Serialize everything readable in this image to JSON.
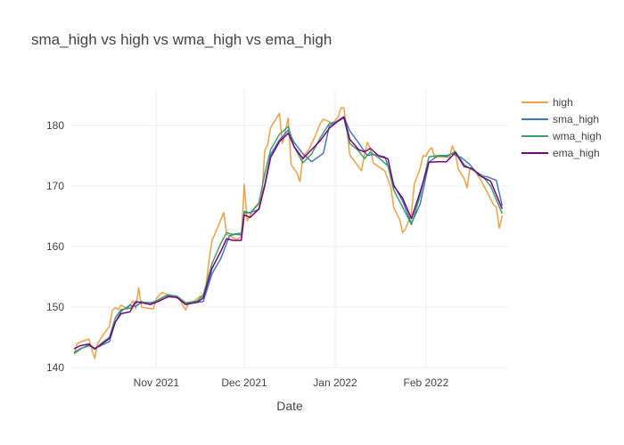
{
  "chart_data": {
    "type": "line",
    "title": "sma_high vs high vs wma_high vs ema_high",
    "xlabel": "Date",
    "ylabel": "",
    "xlim": [
      "2021-10-03",
      "2022-03-01"
    ],
    "ylim": [
      140,
      186
    ],
    "x_ticks": [
      {
        "value": "2021-11-01",
        "label": "Nov 2021"
      },
      {
        "value": "2021-12-01",
        "label": "Dec 2021"
      },
      {
        "value": "2022-01-01",
        "label": "Jan 2022"
      },
      {
        "value": "2022-02-01",
        "label": "Feb 2022"
      }
    ],
    "y_ticks": [
      140,
      150,
      160,
      170,
      180
    ],
    "grid": true,
    "legend_position": "top-right",
    "series": [
      {
        "name": "high",
        "color": "#f2a03f",
        "points": [
          [
            "2021-10-04",
            142.2
          ],
          [
            "2021-10-05",
            144.0
          ],
          [
            "2021-10-07",
            144.4
          ],
          [
            "2021-10-09",
            144.7
          ],
          [
            "2021-10-10",
            143.0
          ],
          [
            "2021-10-11",
            141.5
          ],
          [
            "2021-10-12",
            144.0
          ],
          [
            "2021-10-14",
            145.5
          ],
          [
            "2021-10-16",
            146.8
          ],
          [
            "2021-10-17",
            149.4
          ],
          [
            "2021-10-18",
            149.9
          ],
          [
            "2021-10-19",
            149.6
          ],
          [
            "2021-10-20",
            150.3
          ],
          [
            "2021-10-22",
            149.7
          ],
          [
            "2021-10-24",
            151.0
          ],
          [
            "2021-10-25",
            149.7
          ],
          [
            "2021-10-26",
            153.2
          ],
          [
            "2021-10-27",
            150.0
          ],
          [
            "2021-10-29",
            149.8
          ],
          [
            "2021-10-31",
            149.7
          ],
          [
            "2021-11-01",
            151.4
          ],
          [
            "2021-11-03",
            152.4
          ],
          [
            "2021-11-05",
            152.0
          ],
          [
            "2021-11-07",
            151.8
          ],
          [
            "2021-11-09",
            151.2
          ],
          [
            "2021-11-11",
            149.5
          ],
          [
            "2021-11-12",
            150.6
          ],
          [
            "2021-11-14",
            151.0
          ],
          [
            "2021-11-16",
            151.8
          ],
          [
            "2021-11-17",
            151.5
          ],
          [
            "2021-11-18",
            153.8
          ],
          [
            "2021-11-19",
            157.8
          ],
          [
            "2021-11-20",
            161.0
          ],
          [
            "2021-11-22",
            163.2
          ],
          [
            "2021-11-24",
            165.6
          ],
          [
            "2021-11-25",
            162.0
          ],
          [
            "2021-11-26",
            161.8
          ],
          [
            "2021-11-28",
            161.2
          ],
          [
            "2021-11-29",
            161.3
          ],
          [
            "2021-11-30",
            161.6
          ],
          [
            "2021-12-01",
            170.3
          ],
          [
            "2021-12-02",
            164.2
          ],
          [
            "2021-12-04",
            166.0
          ],
          [
            "2021-12-06",
            167.0
          ],
          [
            "2021-12-07",
            168.3
          ],
          [
            "2021-12-08",
            175.8
          ],
          [
            "2021-12-09",
            176.8
          ],
          [
            "2021-12-10",
            179.6
          ],
          [
            "2021-12-12",
            181.2
          ],
          [
            "2021-12-13",
            182.0
          ],
          [
            "2021-12-14",
            177.0
          ],
          [
            "2021-12-15",
            179.0
          ],
          [
            "2021-12-16",
            181.2
          ],
          [
            "2021-12-17",
            173.5
          ],
          [
            "2021-12-19",
            172.1
          ],
          [
            "2021-12-20",
            170.7
          ],
          [
            "2021-12-21",
            174.8
          ],
          [
            "2021-12-23",
            176.0
          ],
          [
            "2021-12-25",
            178.0
          ],
          [
            "2021-12-27",
            180.4
          ],
          [
            "2021-12-28",
            181.0
          ],
          [
            "2021-12-29",
            180.8
          ],
          [
            "2021-12-30",
            180.6
          ],
          [
            "2021-12-31",
            180.2
          ],
          [
            "2022-01-02",
            181.4
          ],
          [
            "2022-01-03",
            182.9
          ],
          [
            "2022-01-04",
            182.9
          ],
          [
            "2022-01-05",
            179.3
          ],
          [
            "2022-01-06",
            175.1
          ],
          [
            "2022-01-08",
            173.8
          ],
          [
            "2022-01-10",
            172.5
          ],
          [
            "2022-01-11",
            175.2
          ],
          [
            "2022-01-12",
            177.2
          ],
          [
            "2022-01-13",
            176.2
          ],
          [
            "2022-01-14",
            173.8
          ],
          [
            "2022-01-18",
            172.4
          ],
          [
            "2022-01-20",
            169.8
          ],
          [
            "2022-01-21",
            166.4
          ],
          [
            "2022-01-23",
            164.5
          ],
          [
            "2022-01-24",
            162.3
          ],
          [
            "2022-01-25",
            162.9
          ],
          [
            "2022-01-27",
            165.5
          ],
          [
            "2022-01-28",
            170.3
          ],
          [
            "2022-01-30",
            172.9
          ],
          [
            "2022-01-31",
            175.0
          ],
          [
            "2022-02-01",
            174.9
          ],
          [
            "2022-02-02",
            175.9
          ],
          [
            "2022-02-03",
            176.3
          ],
          [
            "2022-02-04",
            174.6
          ],
          [
            "2022-02-05",
            174.8
          ],
          [
            "2022-02-07",
            174.8
          ],
          [
            "2022-02-09",
            174.7
          ],
          [
            "2022-02-10",
            176.6
          ],
          [
            "2022-02-11",
            175.4
          ],
          [
            "2022-02-12",
            172.8
          ],
          [
            "2022-02-14",
            171.2
          ],
          [
            "2022-02-15",
            169.7
          ],
          [
            "2022-02-16",
            173.0
          ],
          [
            "2022-02-18",
            172.3
          ],
          [
            "2022-02-20",
            170.7
          ],
          [
            "2022-02-22",
            168.8
          ],
          [
            "2022-02-24",
            166.9
          ],
          [
            "2022-02-25",
            166.5
          ],
          [
            "2022-02-26",
            163.0
          ],
          [
            "2022-02-27",
            165.1
          ]
        ]
      },
      {
        "name": "sma_high",
        "color": "#3d78c6",
        "points": [
          [
            "2021-10-04",
            142.5
          ],
          [
            "2021-10-06",
            143.1
          ],
          [
            "2021-10-09",
            143.6
          ],
          [
            "2021-10-11",
            143.2
          ],
          [
            "2021-10-13",
            143.6
          ],
          [
            "2021-10-16",
            144.3
          ],
          [
            "2021-10-18",
            147.5
          ],
          [
            "2021-10-20",
            149.3
          ],
          [
            "2021-10-23",
            150.3
          ],
          [
            "2021-10-25",
            150.1
          ],
          [
            "2021-10-27",
            150.8
          ],
          [
            "2021-10-30",
            150.7
          ],
          [
            "2021-11-01",
            151.0
          ],
          [
            "2021-11-04",
            151.8
          ],
          [
            "2021-11-08",
            151.8
          ],
          [
            "2021-11-11",
            150.6
          ],
          [
            "2021-11-14",
            150.7
          ],
          [
            "2021-11-17",
            150.9
          ],
          [
            "2021-11-20",
            155.5
          ],
          [
            "2021-11-23",
            158.0
          ],
          [
            "2021-11-26",
            161.8
          ],
          [
            "2021-11-28",
            162.0
          ],
          [
            "2021-11-30",
            161.9
          ],
          [
            "2021-12-01",
            165.5
          ],
          [
            "2021-12-03",
            165.6
          ],
          [
            "2021-12-06",
            166.1
          ],
          [
            "2021-12-08",
            170.2
          ],
          [
            "2021-12-10",
            175.2
          ],
          [
            "2021-12-13",
            177.6
          ],
          [
            "2021-12-16",
            179.2
          ],
          [
            "2021-12-18",
            177.2
          ],
          [
            "2021-12-21",
            175.3
          ],
          [
            "2021-12-24",
            174.0
          ],
          [
            "2021-12-28",
            175.4
          ],
          [
            "2021-12-30",
            179.9
          ],
          [
            "2022-01-01",
            180.5
          ],
          [
            "2022-01-04",
            181.4
          ],
          [
            "2022-01-06",
            179.1
          ],
          [
            "2022-01-09",
            177.1
          ],
          [
            "2022-01-12",
            175.0
          ],
          [
            "2022-01-14",
            175.2
          ],
          [
            "2022-01-18",
            174.8
          ],
          [
            "2022-01-21",
            170.2
          ],
          [
            "2022-01-24",
            167.5
          ],
          [
            "2022-01-27",
            163.8
          ],
          [
            "2022-01-30",
            167.0
          ],
          [
            "2022-02-02",
            173.9
          ],
          [
            "2022-02-05",
            175.0
          ],
          [
            "2022-02-08",
            175.0
          ],
          [
            "2022-02-10",
            175.3
          ],
          [
            "2022-02-13",
            174.7
          ],
          [
            "2022-02-16",
            173.5
          ],
          [
            "2022-02-19",
            171.7
          ],
          [
            "2022-02-22",
            171.5
          ],
          [
            "2022-02-25",
            170.9
          ],
          [
            "2022-02-27",
            166.7
          ]
        ]
      },
      {
        "name": "wma_high",
        "color": "#3aa35a",
        "points": [
          [
            "2021-10-04",
            142.3
          ],
          [
            "2021-10-06",
            143.0
          ],
          [
            "2021-10-09",
            143.8
          ],
          [
            "2021-10-11",
            143.0
          ],
          [
            "2021-10-14",
            144.3
          ],
          [
            "2021-10-16",
            145.0
          ],
          [
            "2021-10-18",
            148.2
          ],
          [
            "2021-10-20",
            149.6
          ],
          [
            "2021-10-23",
            149.8
          ],
          [
            "2021-10-25",
            150.7
          ],
          [
            "2021-10-27",
            150.9
          ],
          [
            "2021-10-30",
            150.4
          ],
          [
            "2021-11-02",
            151.3
          ],
          [
            "2021-11-05",
            152.0
          ],
          [
            "2021-11-08",
            151.8
          ],
          [
            "2021-11-11",
            150.7
          ],
          [
            "2021-11-15",
            151.0
          ],
          [
            "2021-11-17",
            152.0
          ],
          [
            "2021-11-20",
            157.2
          ],
          [
            "2021-11-23",
            160.5
          ],
          [
            "2021-11-25",
            162.3
          ],
          [
            "2021-11-27",
            162.0
          ],
          [
            "2021-11-30",
            162.2
          ],
          [
            "2021-12-01",
            165.8
          ],
          [
            "2021-12-03",
            165.5
          ],
          [
            "2021-12-06",
            167.2
          ],
          [
            "2021-12-08",
            172.0
          ],
          [
            "2021-12-10",
            176.0
          ],
          [
            "2021-12-13",
            178.5
          ],
          [
            "2021-12-16",
            179.8
          ],
          [
            "2021-12-18",
            176.5
          ],
          [
            "2021-12-21",
            173.8
          ],
          [
            "2021-12-24",
            175.3
          ],
          [
            "2021-12-27",
            178.0
          ],
          [
            "2021-12-30",
            180.3
          ],
          [
            "2022-01-02",
            180.7
          ],
          [
            "2022-01-04",
            181.2
          ],
          [
            "2022-01-06",
            177.0
          ],
          [
            "2022-01-09",
            175.8
          ],
          [
            "2022-01-11",
            174.5
          ],
          [
            "2022-01-13",
            175.6
          ],
          [
            "2022-01-16",
            174.6
          ],
          [
            "2022-01-19",
            173.3
          ],
          [
            "2022-01-21",
            169.3
          ],
          [
            "2022-01-24",
            166.5
          ],
          [
            "2022-01-27",
            163.6
          ],
          [
            "2022-01-30",
            168.4
          ],
          [
            "2022-02-02",
            174.8
          ],
          [
            "2022-02-05",
            175.0
          ],
          [
            "2022-02-08",
            174.8
          ],
          [
            "2022-02-11",
            175.7
          ],
          [
            "2022-02-14",
            173.5
          ],
          [
            "2022-02-17",
            172.6
          ],
          [
            "2022-02-20",
            171.8
          ],
          [
            "2022-02-23",
            170.0
          ],
          [
            "2022-02-27",
            165.4
          ]
        ]
      },
      {
        "name": "ema_high",
        "color": "#800080",
        "points": [
          [
            "2021-10-04",
            143.1
          ],
          [
            "2021-10-06",
            143.6
          ],
          [
            "2021-10-09",
            143.9
          ],
          [
            "2021-10-11",
            143.1
          ],
          [
            "2021-10-14",
            144.1
          ],
          [
            "2021-10-16",
            144.8
          ],
          [
            "2021-10-18",
            147.5
          ],
          [
            "2021-10-20",
            148.9
          ],
          [
            "2021-10-23",
            149.2
          ],
          [
            "2021-10-25",
            150.9
          ],
          [
            "2021-10-27",
            150.7
          ],
          [
            "2021-10-30",
            150.4
          ],
          [
            "2021-11-02",
            151.0
          ],
          [
            "2021-11-05",
            151.7
          ],
          [
            "2021-11-08",
            151.6
          ],
          [
            "2021-11-11",
            150.4
          ],
          [
            "2021-11-15",
            150.8
          ],
          [
            "2021-11-17",
            151.5
          ],
          [
            "2021-11-20",
            156.4
          ],
          [
            "2021-11-23",
            159.2
          ],
          [
            "2021-11-25",
            161.3
          ],
          [
            "2021-11-27",
            161.0
          ],
          [
            "2021-11-30",
            161.0
          ],
          [
            "2021-12-01",
            165.2
          ],
          [
            "2021-12-03",
            164.8
          ],
          [
            "2021-12-06",
            166.2
          ],
          [
            "2021-12-08",
            170.0
          ],
          [
            "2021-12-10",
            174.7
          ],
          [
            "2021-12-13",
            177.3
          ],
          [
            "2021-12-16",
            178.7
          ],
          [
            "2021-12-18",
            176.5
          ],
          [
            "2021-12-21",
            174.5
          ],
          [
            "2021-12-24",
            176.0
          ],
          [
            "2021-12-27",
            177.5
          ],
          [
            "2021-12-30",
            179.5
          ],
          [
            "2022-01-02",
            180.7
          ],
          [
            "2022-01-04",
            181.4
          ],
          [
            "2022-01-06",
            177.7
          ],
          [
            "2022-01-09",
            176.0
          ],
          [
            "2022-01-11",
            175.6
          ],
          [
            "2022-01-13",
            176.2
          ],
          [
            "2022-01-16",
            174.9
          ],
          [
            "2022-01-19",
            174.5
          ],
          [
            "2022-01-21",
            170.0
          ],
          [
            "2022-01-24",
            168.0
          ],
          [
            "2022-01-27",
            164.6
          ],
          [
            "2022-01-30",
            169.0
          ],
          [
            "2022-02-02",
            173.9
          ],
          [
            "2022-02-05",
            174.0
          ],
          [
            "2022-02-08",
            174.0
          ],
          [
            "2022-02-11",
            175.5
          ],
          [
            "2022-02-14",
            173.2
          ],
          [
            "2022-02-17",
            172.8
          ],
          [
            "2022-02-20",
            171.5
          ],
          [
            "2022-02-23",
            170.8
          ],
          [
            "2022-02-27",
            166.2
          ]
        ]
      }
    ]
  }
}
